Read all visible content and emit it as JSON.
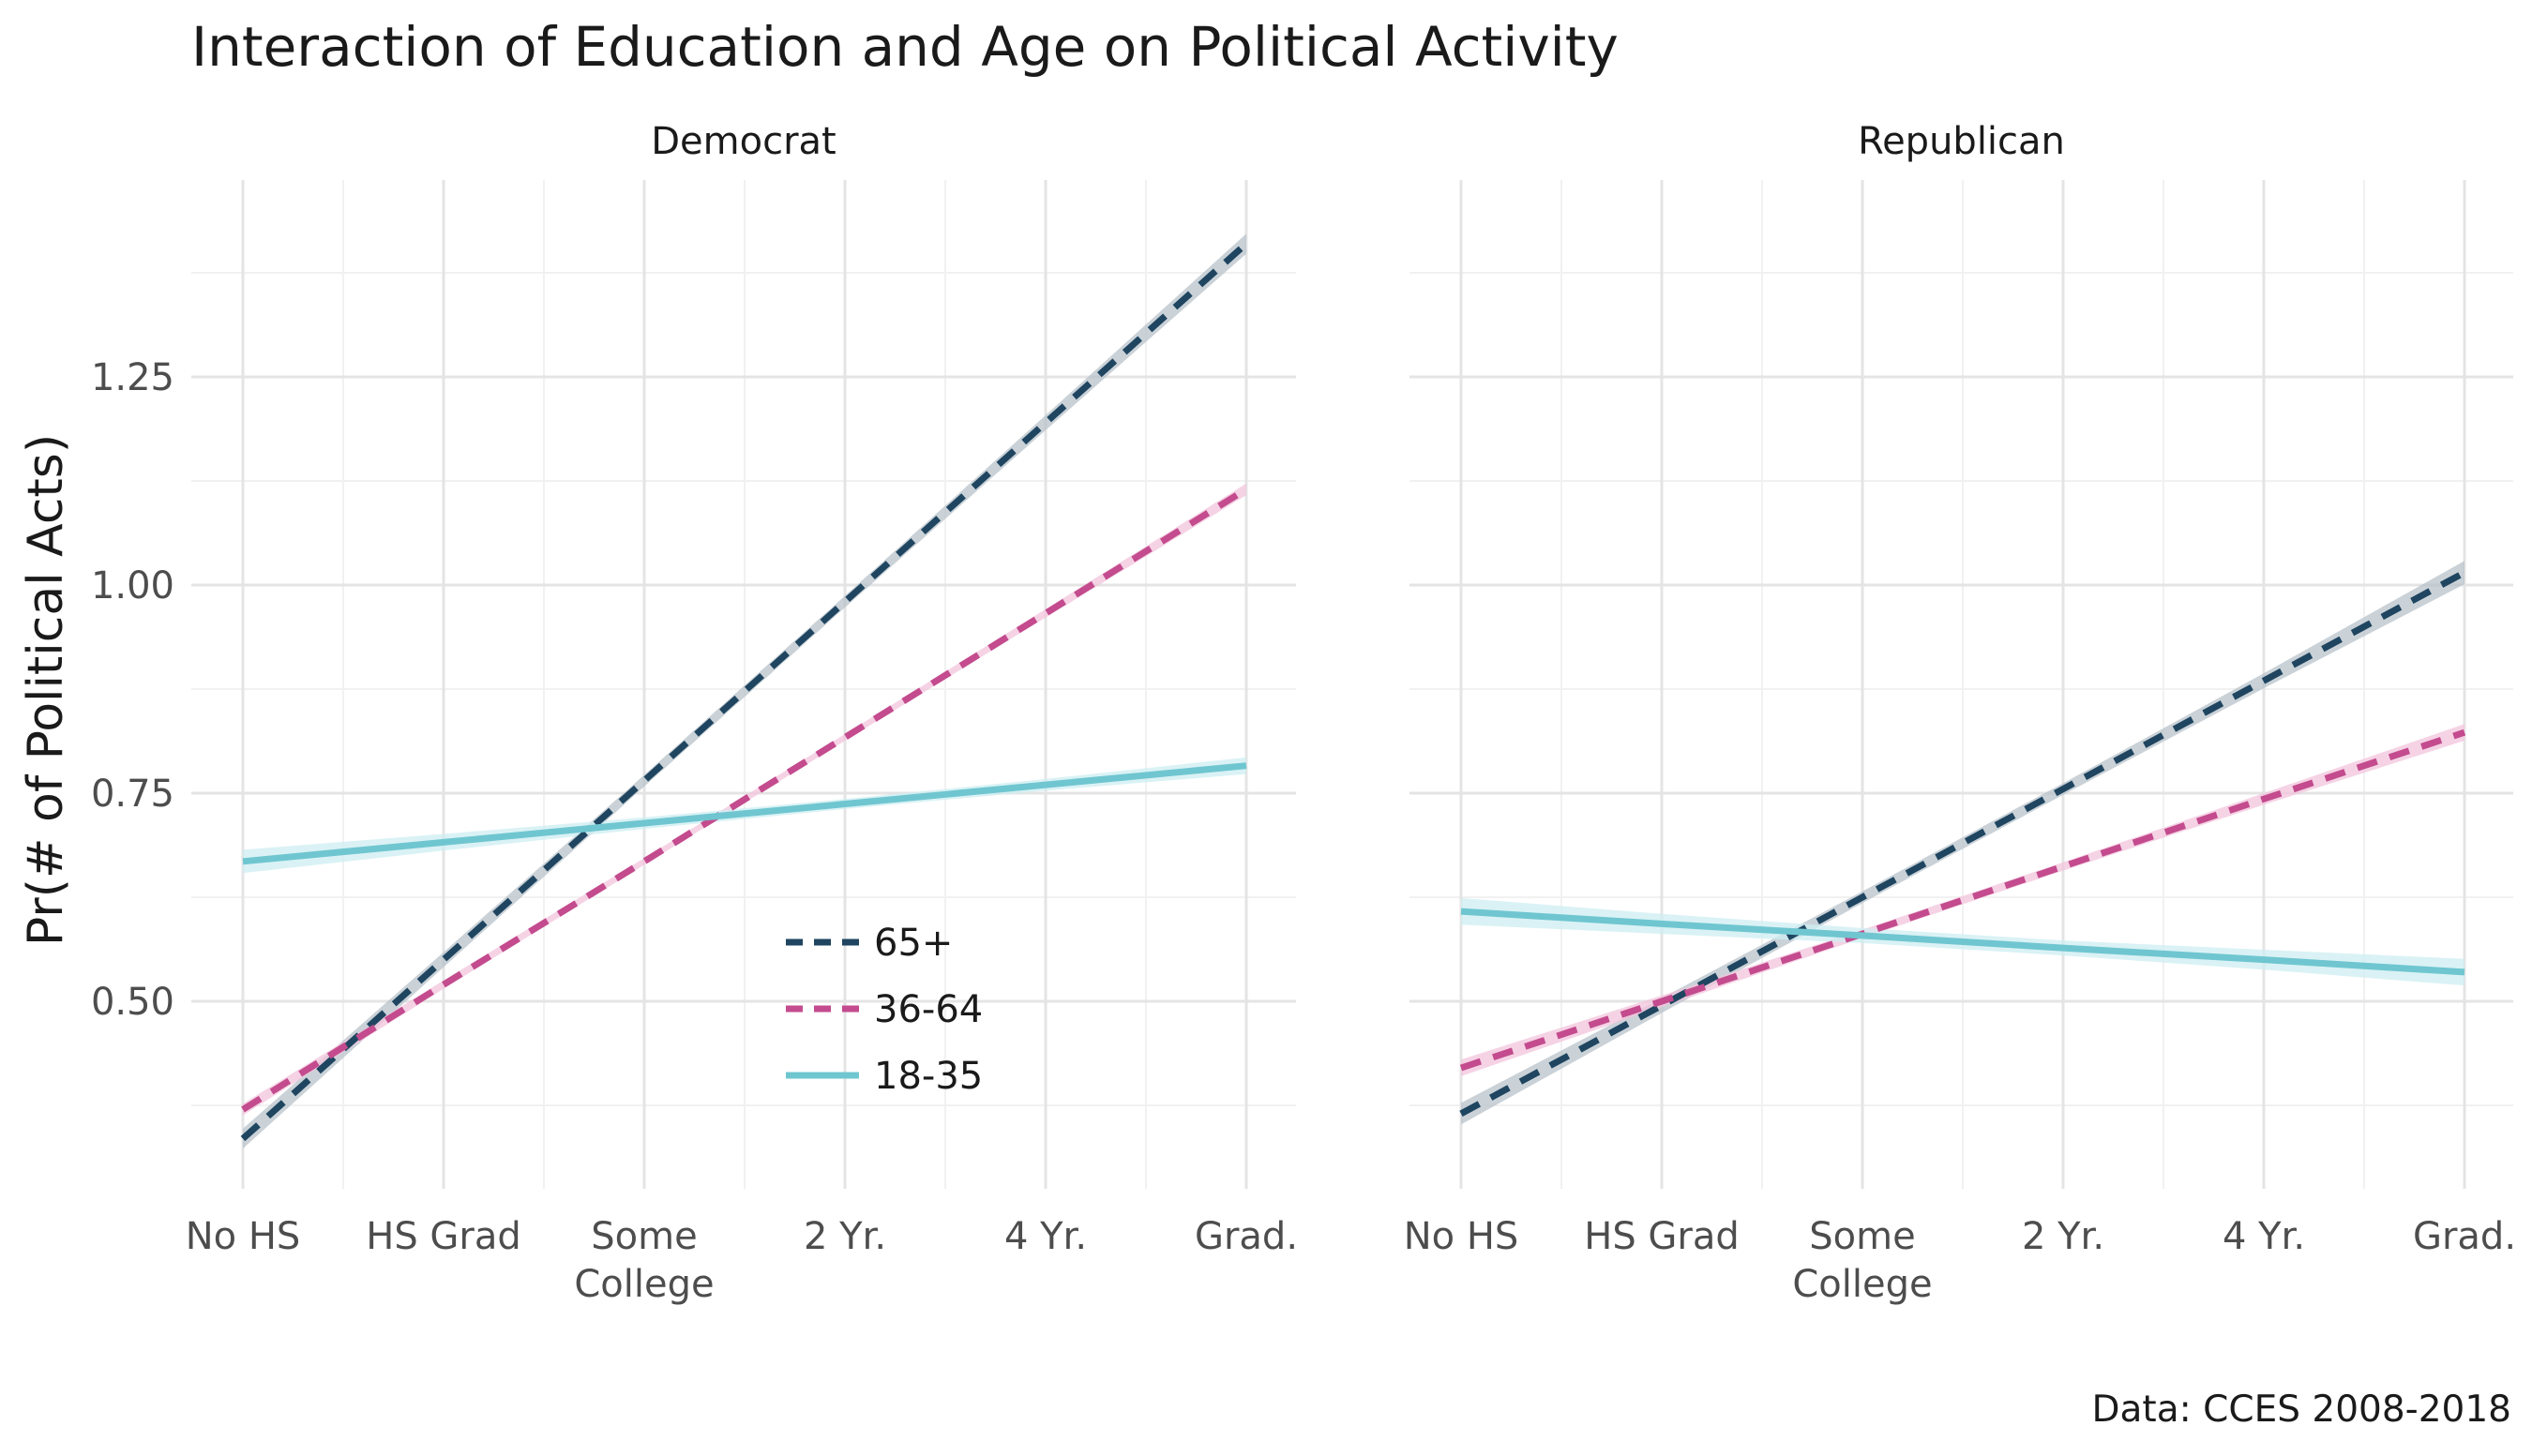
{
  "chart_data": {
    "type": "line",
    "title": "Interaction of Education and Age on Political Activity",
    "ylabel": "Pr(# of Political Acts)",
    "xlabel": "",
    "caption": "Data: CCES 2008-2018",
    "categories": [
      "No HS",
      "HS Grad",
      "Some College",
      "2 Yr.",
      "4 Yr.",
      "Grad."
    ],
    "category_labels": [
      [
        "No HS"
      ],
      [
        "HS Grad"
      ],
      [
        "Some",
        "College"
      ],
      [
        "2 Yr."
      ],
      [
        "4 Yr."
      ],
      [
        "Grad."
      ]
    ],
    "ylim": [
      0.27,
      1.45
    ],
    "yticks": [
      0.5,
      0.75,
      1.0,
      1.25
    ],
    "ytick_labels": [
      "0.50",
      "0.75",
      "1.00",
      "1.25"
    ],
    "grid": true,
    "legend_position": "inside bottom-center",
    "legend": [
      {
        "label": "65+",
        "color": "#1f4560",
        "dash": "dashed"
      },
      {
        "label": "36-64",
        "color": "#c34b8e",
        "dash": "dashed"
      },
      {
        "label": "18-35",
        "color": "#6fc6d0",
        "dash": "solid"
      }
    ],
    "panels": [
      {
        "name": "Democrat",
        "series": [
          {
            "name": "65+",
            "color": "#1f4560",
            "band": "#b8c3cb",
            "dash": "dashed",
            "values": [
              0.335,
              0.55,
              0.765,
              0.98,
              1.195,
              1.41
            ],
            "se": [
              0.012,
              0.009,
              0.007,
              0.007,
              0.009,
              0.012
            ]
          },
          {
            "name": "36-64",
            "color": "#c34b8e",
            "band": "#f2c4dc",
            "dash": "dashed",
            "values": [
              0.37,
              0.52,
              0.668,
              0.817,
              0.966,
              1.115
            ],
            "se": [
              0.007,
              0.005,
              0.004,
              0.004,
              0.005,
              0.007
            ]
          },
          {
            "name": "18-35",
            "color": "#6fc6d0",
            "band": "#cdeef1",
            "dash": "solid",
            "values": [
              0.668,
              0.691,
              0.714,
              0.737,
              0.76,
              0.783
            ],
            "se": [
              0.014,
              0.01,
              0.007,
              0.006,
              0.007,
              0.01
            ]
          }
        ]
      },
      {
        "name": "Republican",
        "series": [
          {
            "name": "65+",
            "color": "#1f4560",
            "band": "#b8c3cb",
            "dash": "dashed",
            "values": [
              0.365,
              0.495,
              0.625,
              0.755,
              0.885,
              1.015
            ],
            "se": [
              0.013,
              0.009,
              0.007,
              0.007,
              0.009,
              0.014
            ]
          },
          {
            "name": "36-64",
            "color": "#c34b8e",
            "band": "#f2c4dc",
            "dash": "dashed",
            "values": [
              0.42,
              0.5,
              0.581,
              0.662,
              0.743,
              0.823
            ],
            "se": [
              0.01,
              0.007,
              0.005,
              0.005,
              0.007,
              0.01
            ]
          },
          {
            "name": "18-35",
            "color": "#6fc6d0",
            "band": "#cdeef1",
            "dash": "solid",
            "values": [
              0.608,
              0.593,
              0.579,
              0.564,
              0.55,
              0.535
            ],
            "se": [
              0.016,
              0.012,
              0.009,
              0.009,
              0.012,
              0.016
            ]
          }
        ]
      }
    ]
  }
}
